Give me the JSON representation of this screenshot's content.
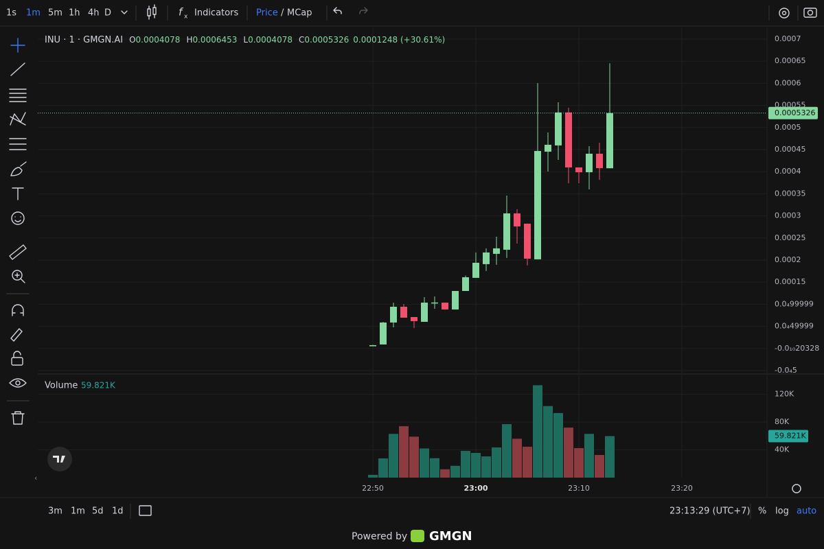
{
  "toolbar": {
    "intervals": [
      "1s",
      "1m",
      "5m",
      "1h",
      "4h",
      "D"
    ],
    "active_interval": 1,
    "indicators": "Indicators",
    "price": "Price",
    "separator": "/",
    "mcap": "MCap"
  },
  "bottom_bar": {
    "ranges": [
      "3m",
      "1m",
      "5d",
      "1d"
    ],
    "clock": "23:13:29 (UTC+7)",
    "percent": "%",
    "log": "log",
    "auto": "auto"
  },
  "footer": {
    "powered_by": "Powered by",
    "brand": "GMGN"
  },
  "chart_data": [
    {
      "type": "candlestick",
      "title": "INU · 1 · GMGN.AI",
      "ohlc_labels": [
        "O",
        "H",
        "L",
        "C"
      ],
      "change": "0.0001248 (+30.61%)",
      "x": [
        "22:50",
        "22:51",
        "22:52",
        "22:53",
        "22:54",
        "22:55",
        "22:56",
        "22:57",
        "22:58",
        "22:59",
        "23:00",
        "23:01",
        "23:02",
        "23:03",
        "23:04",
        "23:05",
        "23:06",
        "23:07",
        "23:08",
        "23:09",
        "23:10",
        "23:11",
        "23:12",
        "23:13"
      ],
      "open": [
        5e-06,
        9e-06,
        5.87e-05,
        9.44e-05,
        7.11e-05,
        6.03e-05,
        0.0001037,
        0.0001037,
        8.82e-05,
        0.0001301,
        0.0001598,
        0.0001908,
        0.0002141,
        0.0002234,
        0.0003057,
        0.0002824,
        0.0002017,
        0.0004453,
        0.0004594,
        0.000534,
        0.0004097,
        0.0003988,
        0.0004407,
        0.0004078
      ],
      "high": [
        8e-06,
        6e-05,
        0.0001037,
        0.0001006,
        7.11e-05,
        0.0001161,
        0.0001177,
        0.0001037,
        0.0001301,
        0.000165,
        0.0002172,
        0.0002265,
        0.0002529,
        0.000346,
        0.000315,
        0.0002824,
        0.0006005,
        0.0004888,
        0.0005572,
        0.0005448,
        0.0004097,
        0.0004578,
        0.0004655,
        0.0006453
      ],
      "low": [
        5e-06,
        9e-06,
        4.78e-05,
        6.96e-05,
        4.63e-05,
        6.03e-05,
        8.98e-05,
        8.82e-05,
        8.82e-05,
        0.0001301,
        0.0001598,
        0.0001753,
        0.0001893,
        0.0002048,
        0.0002374,
        0.0001877,
        0.0002017,
        0.0004003,
        0.0004267,
        0.0003739,
        0.0003739,
        0.00036,
        0.0003817,
        0.0004078
      ],
      "close": [
        7.5e-06,
        5.87e-05,
        9.44e-05,
        6.96e-05,
        6.18e-05,
        0.0001037,
        0.000104,
        8.82e-05,
        0.0001301,
        0.0001612,
        0.0001939,
        0.0002172,
        0.0002265,
        0.0003057,
        0.0002762,
        0.0002032,
        0.0004469,
        0.0004609,
        0.000534,
        0.0004097,
        0.0003988,
        0.0004407,
        0.0004081,
        0.0005326
      ],
      "up_color": "#84d8a0",
      "down_color": "#f1506c",
      "ylim": [
        -5.78e-05,
        0.0007264
      ],
      "yticks": [
        0.0007,
        0.00065,
        0.0006,
        0.00055,
        0.0005,
        0.00045,
        0.0004,
        0.00035,
        0.0003,
        0.00025,
        0.0002,
        0.00015,
        {
          "value": 9.9999e-05,
          "label": "0.0₄99999"
        },
        {
          "value": 4.9999e-05,
          "label": "0.0₄49999"
        },
        {
          "value": -2.0328e-11,
          "label": "-0.0₁₀20328"
        },
        {
          "value": -5e-05,
          "label": "-0.0₄5"
        }
      ],
      "xticks": [
        "22:50",
        "23:00",
        "23:10",
        "23:20"
      ],
      "grid": true
    },
    {
      "type": "bar",
      "title": "Volume",
      "values": [
        4000,
        27700,
        63000,
        74000,
        59000,
        42000,
        28000,
        12000,
        17000,
        38500,
        35600,
        30600,
        43500,
        77000,
        56000,
        44500,
        133000,
        103000,
        93000,
        72000,
        42500,
        63000,
        32600,
        59821
      ],
      "value_labels": [
        null,
        null,
        null,
        null,
        null,
        null,
        null,
        null,
        null,
        null,
        null,
        null,
        null,
        null,
        null,
        null,
        null,
        null,
        null,
        null,
        null,
        null,
        null,
        "59.821K"
      ],
      "up_color": "#1d6c5e",
      "down_color": "#8c3b40",
      "label_color": "#26a69a",
      "ylim": [
        0,
        146200
      ],
      "yticks": [
        {
          "value": 40000,
          "label": "40K"
        },
        {
          "value": 80000,
          "label": "80K"
        },
        {
          "value": 120000,
          "label": "120K"
        }
      ],
      "grid": true
    }
  ]
}
